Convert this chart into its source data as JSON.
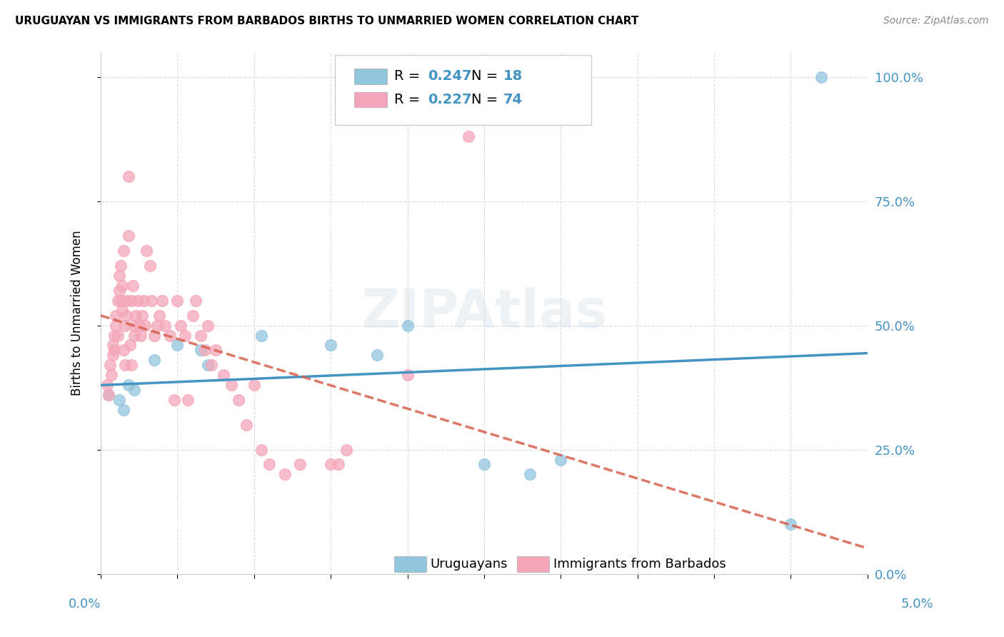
{
  "title": "URUGUAYAN VS IMMIGRANTS FROM BARBADOS BIRTHS TO UNMARRIED WOMEN CORRELATION CHART",
  "source": "Source: ZipAtlas.com",
  "ylabel": "Births to Unmarried Women",
  "xmin": 0.0,
  "xmax": 5.0,
  "ymin": 0.0,
  "ymax": 105.0,
  "yticks": [
    0,
    25,
    50,
    75,
    100
  ],
  "ytick_labels": [
    "0.0%",
    "25.0%",
    "50.0%",
    "75.0%",
    "100.0%"
  ],
  "blue_label": "Uruguayans",
  "pink_label": "Immigrants from Barbados",
  "blue_R": "0.247",
  "blue_N": "18",
  "pink_R": "0.227",
  "pink_N": "74",
  "blue_color": "#92c5de",
  "blue_line_color": "#4393c3",
  "pink_color": "#f4a6b8",
  "pink_line_color": "#d6604d",
  "watermark": "ZIPAtlas",
  "blue_x": [
    0.05,
    0.12,
    0.15,
    0.18,
    0.22,
    0.35,
    0.5,
    0.65,
    0.7,
    1.05,
    1.5,
    1.8,
    2.0,
    2.5,
    2.8,
    3.0,
    4.5,
    4.7
  ],
  "blue_y": [
    36,
    35,
    33,
    38,
    37,
    43,
    46,
    45,
    42,
    48,
    46,
    44,
    50,
    22,
    20,
    23,
    10,
    100
  ],
  "pink_x": [
    0.04,
    0.05,
    0.06,
    0.07,
    0.08,
    0.08,
    0.09,
    0.09,
    0.1,
    0.1,
    0.11,
    0.11,
    0.12,
    0.12,
    0.13,
    0.13,
    0.14,
    0.14,
    0.15,
    0.15,
    0.16,
    0.16,
    0.17,
    0.17,
    0.18,
    0.18,
    0.19,
    0.2,
    0.2,
    0.21,
    0.22,
    0.22,
    0.23,
    0.24,
    0.25,
    0.26,
    0.27,
    0.28,
    0.29,
    0.3,
    0.32,
    0.33,
    0.35,
    0.37,
    0.38,
    0.4,
    0.42,
    0.45,
    0.48,
    0.5,
    0.52,
    0.55,
    0.57,
    0.6,
    0.62,
    0.65,
    0.68,
    0.7,
    0.72,
    0.75,
    0.8,
    0.85,
    0.9,
    0.95,
    1.0,
    1.05,
    1.1,
    1.2,
    1.3,
    1.5,
    1.55,
    1.6,
    2.0,
    2.4
  ],
  "pink_y": [
    38,
    36,
    42,
    40,
    44,
    46,
    48,
    45,
    50,
    52,
    48,
    55,
    60,
    57,
    62,
    55,
    58,
    53,
    65,
    45,
    42,
    50,
    55,
    52,
    80,
    68,
    46,
    55,
    42,
    58,
    50,
    48,
    52,
    55,
    50,
    48,
    52,
    55,
    50,
    65,
    62,
    55,
    48,
    50,
    52,
    55,
    50,
    48,
    35,
    55,
    50,
    48,
    35,
    52,
    55,
    48,
    45,
    50,
    42,
    45,
    40,
    38,
    35,
    30,
    38,
    25,
    22,
    20,
    22,
    22,
    22,
    25,
    40,
    88
  ]
}
